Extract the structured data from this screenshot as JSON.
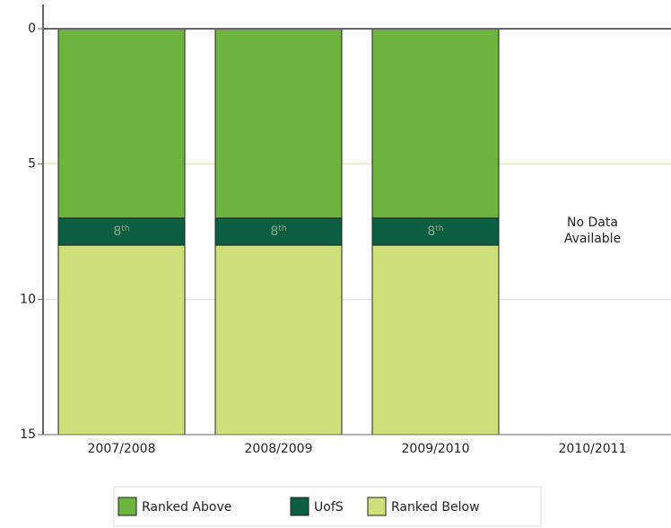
{
  "chart_data": {
    "type": "stacked_bar",
    "categories": [
      "2007/2008",
      "2008/2009",
      "2009/2010",
      "2010/2011"
    ],
    "series": [
      {
        "name": "Ranked Above",
        "color": "#6db33f",
        "values": [
          7,
          7,
          7,
          null
        ]
      },
      {
        "name": "UofS",
        "color": "#0b5e41",
        "values": [
          1,
          1,
          1,
          null
        ]
      },
      {
        "name": "Ranked Below",
        "color": "#cfdf7a",
        "values": [
          7,
          7,
          7,
          null
        ]
      }
    ],
    "rank_labels": [
      {
        "rank": "8",
        "suffix": "th"
      },
      {
        "rank": "8",
        "suffix": "th"
      },
      {
        "rank": "8",
        "suffix": "th"
      },
      null
    ],
    "no_data_label": [
      "No Data",
      "Available"
    ],
    "ylim": [
      0,
      15
    ],
    "yticks": [
      0,
      5,
      10,
      15
    ],
    "y_inverted": true,
    "grid": true,
    "legend": "bottom"
  }
}
